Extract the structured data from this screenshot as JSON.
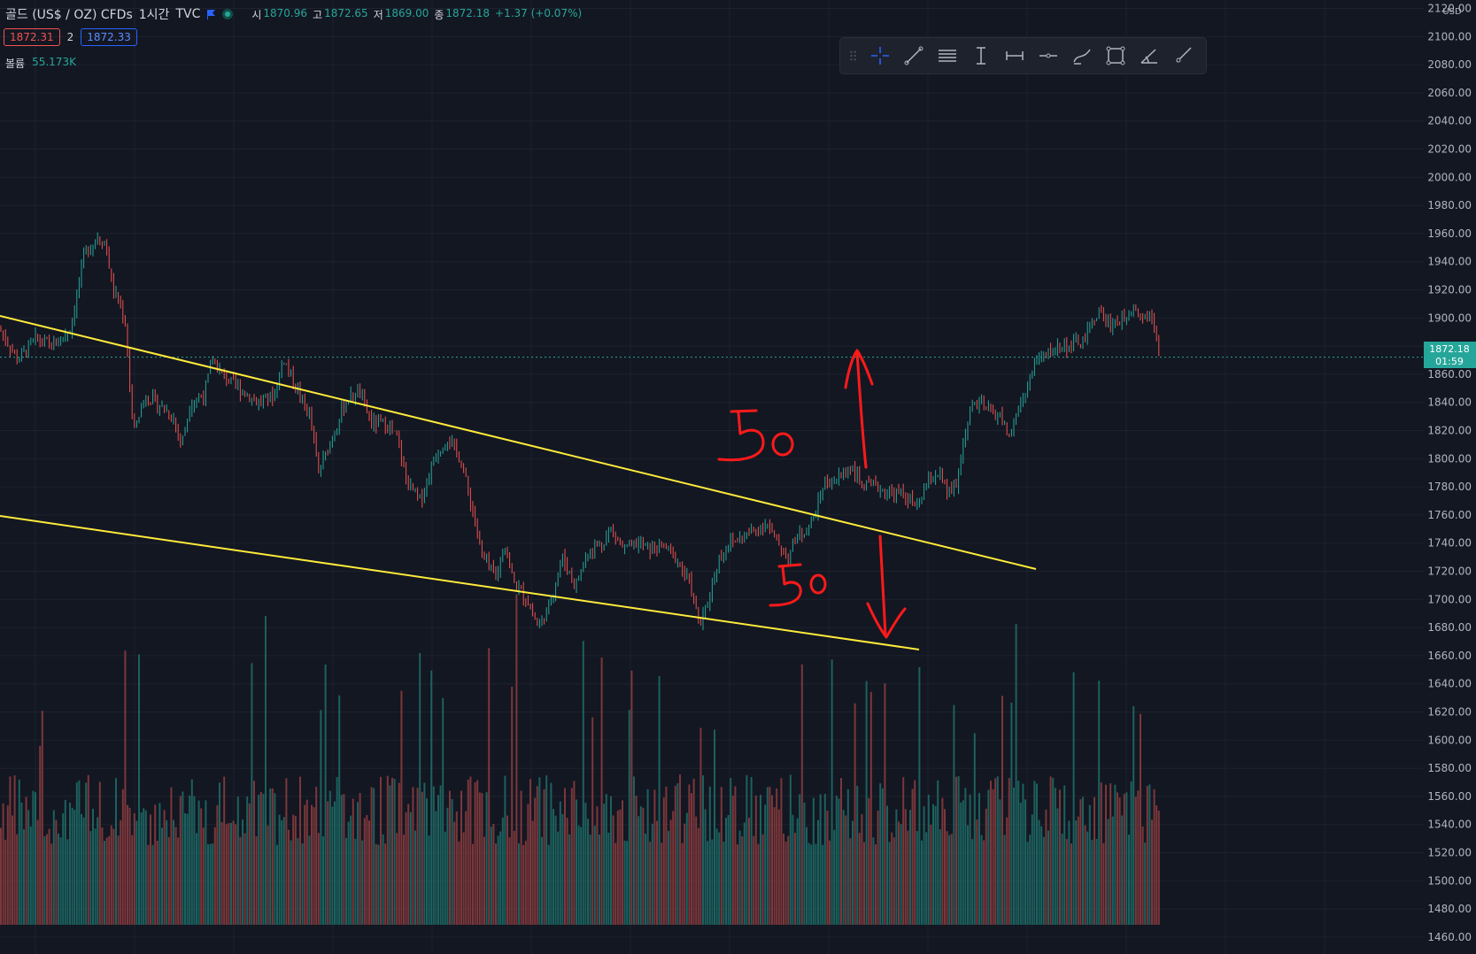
{
  "header": {
    "symbol": "골드 (US$ / OZ) CFDs",
    "interval": "1시간",
    "source": "TVC",
    "open_label": "시",
    "open": "1870.96",
    "high_label": "고",
    "high": "1872.65",
    "low_label": "저",
    "low": "1869.00",
    "close_label": "종",
    "close": "1872.18",
    "change": "+1.37 (+0.07%)"
  },
  "quote": {
    "sell": "1872.31",
    "spread": "2",
    "buy": "1872.33"
  },
  "volume": {
    "label": "볼륨",
    "value": "55.173K"
  },
  "toolbar": {
    "tools": [
      "grip-icon",
      "crosshair-icon",
      "trend-line-icon",
      "parallel-channel-icon",
      "date-range-icon",
      "price-range-icon",
      "horizontal-ray-icon",
      "brush-icon",
      "rectangle-icon",
      "angle-icon",
      "ray-icon"
    ],
    "active": "crosshair-icon"
  },
  "colors": {
    "background": "#131722",
    "up": "#26a69a",
    "down": "#ef5350",
    "trendline": "#ffeb3b",
    "annotation": "#ff1a1a",
    "accent": "#26a69a"
  },
  "annotations": {
    "upper_note": "50",
    "lower_note": "50"
  },
  "chart_data": {
    "type": "candlestick",
    "units": "USD",
    "y_ticks": [
      1460,
      1480,
      1500,
      1520,
      1540,
      1560,
      1580,
      1600,
      1620,
      1640,
      1660,
      1680,
      1700,
      1720,
      1740,
      1760,
      1780,
      1800,
      1820,
      1840,
      1860,
      1880,
      1900,
      1920,
      1940,
      1960,
      1980,
      2000,
      2020,
      2040,
      2060,
      2080,
      2100,
      2120
    ],
    "y_range": [
      1448,
      2126
    ],
    "last_price": "1872.18",
    "countdown": "01:59",
    "price_path": [
      [
        0,
        1892
      ],
      [
        20,
        1870
      ],
      [
        40,
        1885
      ],
      [
        60,
        1880
      ],
      [
        80,
        1893
      ],
      [
        95,
        1945
      ],
      [
        110,
        1958
      ],
      [
        120,
        1952
      ],
      [
        127,
        1920
      ],
      [
        135,
        1910
      ],
      [
        142,
        1895
      ],
      [
        150,
        1820
      ],
      [
        165,
        1845
      ],
      [
        180,
        1838
      ],
      [
        195,
        1830
      ],
      [
        205,
        1810
      ],
      [
        215,
        1840
      ],
      [
        230,
        1845
      ],
      [
        240,
        1870
      ],
      [
        250,
        1860
      ],
      [
        270,
        1850
      ],
      [
        290,
        1840
      ],
      [
        310,
        1845
      ],
      [
        320,
        1872
      ],
      [
        335,
        1850
      ],
      [
        350,
        1830
      ],
      [
        360,
        1790
      ],
      [
        375,
        1815
      ],
      [
        390,
        1840
      ],
      [
        405,
        1848
      ],
      [
        420,
        1825
      ],
      [
        435,
        1825
      ],
      [
        448,
        1815
      ],
      [
        460,
        1782
      ],
      [
        475,
        1770
      ],
      [
        490,
        1800
      ],
      [
        505,
        1815
      ],
      [
        520,
        1800
      ],
      [
        535,
        1760
      ],
      [
        545,
        1730
      ],
      [
        560,
        1715
      ],
      [
        570,
        1740
      ],
      [
        580,
        1712
      ],
      [
        595,
        1700
      ],
      [
        608,
        1680
      ],
      [
        620,
        1695
      ],
      [
        635,
        1730
      ],
      [
        650,
        1710
      ],
      [
        665,
        1735
      ],
      [
        680,
        1740
      ],
      [
        690,
        1750
      ],
      [
        705,
        1735
      ],
      [
        720,
        1740
      ],
      [
        735,
        1735
      ],
      [
        750,
        1738
      ],
      [
        765,
        1728
      ],
      [
        780,
        1710
      ],
      [
        790,
        1680
      ],
      [
        800,
        1700
      ],
      [
        812,
        1730
      ],
      [
        825,
        1740
      ],
      [
        840,
        1745
      ],
      [
        855,
        1750
      ],
      [
        865,
        1755
      ],
      [
        878,
        1740
      ],
      [
        890,
        1730
      ],
      [
        900,
        1745
      ],
      [
        912,
        1750
      ],
      [
        920,
        1760
      ],
      [
        930,
        1782
      ],
      [
        945,
        1785
      ],
      [
        960,
        1795
      ],
      [
        975,
        1780
      ],
      [
        990,
        1780
      ],
      [
        1005,
        1775
      ],
      [
        1020,
        1775
      ],
      [
        1035,
        1765
      ],
      [
        1050,
        1785
      ],
      [
        1060,
        1790
      ],
      [
        1070,
        1775
      ],
      [
        1080,
        1780
      ],
      [
        1090,
        1820
      ],
      [
        1100,
        1840
      ],
      [
        1115,
        1835
      ],
      [
        1130,
        1830
      ],
      [
        1140,
        1815
      ],
      [
        1150,
        1835
      ],
      [
        1160,
        1850
      ],
      [
        1170,
        1870
      ],
      [
        1185,
        1875
      ],
      [
        1195,
        1880
      ],
      [
        1210,
        1880
      ],
      [
        1225,
        1885
      ],
      [
        1240,
        1905
      ],
      [
        1255,
        1895
      ],
      [
        1270,
        1900
      ],
      [
        1280,
        1910
      ],
      [
        1290,
        1900
      ],
      [
        1300,
        1905
      ],
      [
        1308,
        1885
      ],
      [
        1310,
        1872
      ]
    ]
  }
}
